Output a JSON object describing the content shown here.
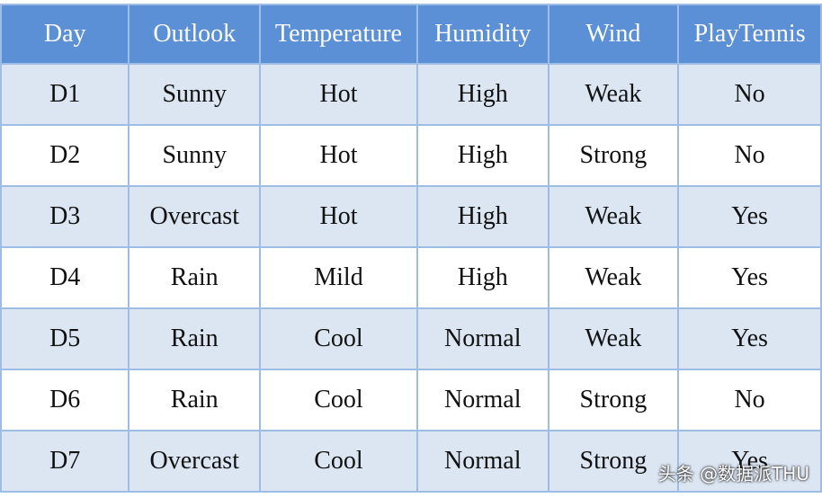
{
  "table": {
    "header": [
      "Day",
      "Outlook",
      "Temperature",
      "Humidity",
      "Wind",
      "PlayTennis"
    ],
    "rows": [
      [
        "D1",
        "Sunny",
        "Hot",
        "High",
        "Weak",
        "No"
      ],
      [
        "D2",
        "Sunny",
        "Hot",
        "High",
        "Strong",
        "No"
      ],
      [
        "D3",
        "Overcast",
        "Hot",
        "High",
        "Weak",
        "Yes"
      ],
      [
        "D4",
        "Rain",
        "Mild",
        "High",
        "Weak",
        "Yes"
      ],
      [
        "D5",
        "Rain",
        "Cool",
        "Normal",
        "Weak",
        "Yes"
      ],
      [
        "D6",
        "Rain",
        "Cool",
        "Normal",
        "Strong",
        "No"
      ],
      [
        "D7",
        "Overcast",
        "Cool",
        "Normal",
        "Strong",
        "Yes"
      ]
    ]
  },
  "watermark": "头条 @数据派THU"
}
